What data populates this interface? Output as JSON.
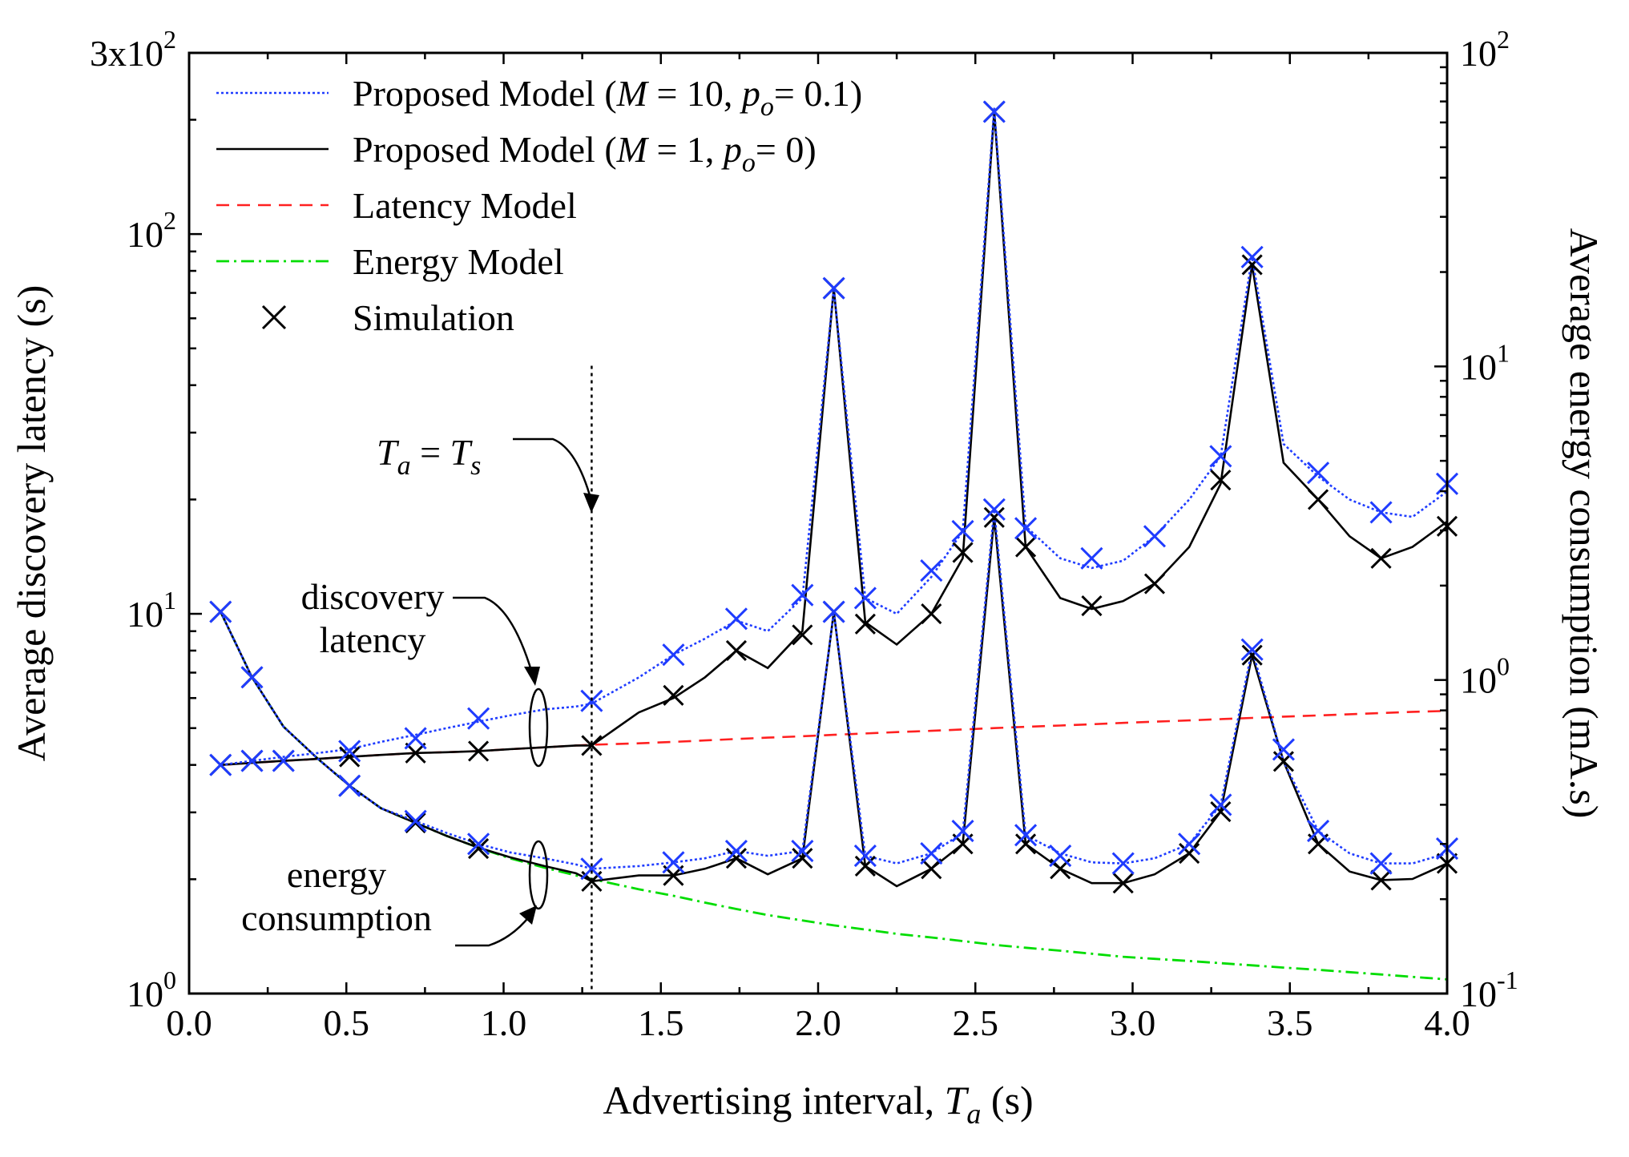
{
  "chart_data": {
    "type": "line",
    "xlabel": "Advertising interval, T_a (s)",
    "xlabel_parts": {
      "main": "Advertising interval, ",
      "var": "T",
      "sub": "a",
      "unit": " (s)"
    },
    "ylabel_left": "Average discovery latency (s)",
    "ylabel_right": "Average energy consumption (mA.s)",
    "xlim": [
      0.0,
      4.0
    ],
    "ylim_left": [
      1,
      300
    ],
    "ylim_right": [
      0.1,
      100
    ],
    "y_scale": "log",
    "x_ticks": [
      "0.0",
      "0.5",
      "1.0",
      "1.5",
      "2.0",
      "2.5",
      "3.0",
      "3.5",
      "4.0"
    ],
    "y_left_ticks": [
      {
        "value": 1,
        "base": "10",
        "exp": "0"
      },
      {
        "value": 10,
        "base": "10",
        "exp": "1"
      },
      {
        "value": 100,
        "base": "10",
        "exp": "2"
      },
      {
        "value": 300,
        "base": "3x10",
        "exp": "2"
      }
    ],
    "y_right_ticks": [
      {
        "value": 0.1,
        "base": "10",
        "exp": "-1"
      },
      {
        "value": 1,
        "base": "10",
        "exp": "0"
      },
      {
        "value": 10,
        "base": "10",
        "exp": "1"
      },
      {
        "value": 100,
        "base": "10",
        "exp": "2"
      }
    ],
    "legend": {
      "position": "top-left",
      "entries": [
        {
          "key": "blue",
          "text": "Proposed Model (M = 10, p_o = 0.1)",
          "parts": [
            "Proposed Model (",
            "M",
            " = 10,  ",
            "p",
            "o",
            "= 0.1)"
          ],
          "style": "dotted",
          "color": "#1f3cff"
        },
        {
          "key": "black",
          "text": "Proposed Model (M = 1, p_o = 0)",
          "parts": [
            "Proposed Model (",
            "M",
            " = 1,  ",
            "p",
            "o",
            "= 0)"
          ],
          "style": "solid",
          "color": "#000000"
        },
        {
          "key": "latency",
          "text": "Latency Model",
          "style": "dashed",
          "color": "#ff2020"
        },
        {
          "key": "energy",
          "text": "Energy Model",
          "style": "dashdot",
          "color": "#00dd00"
        },
        {
          "key": "sim",
          "text": "Simulation",
          "style": "marker",
          "color": "#000000"
        }
      ]
    },
    "annotations": [
      {
        "key": "ta_ts",
        "text": "T_a = T_s",
        "parts": [
          "T",
          "a",
          " = ",
          "T",
          "s"
        ],
        "x": 1.28
      },
      {
        "key": "latency_label",
        "lines": [
          "discovery",
          "latency"
        ]
      },
      {
        "key": "energy_label",
        "lines": [
          "energy",
          "consumption"
        ]
      }
    ],
    "vline": {
      "x": 1.28,
      "y_from": 1.0,
      "y_to": 45
    },
    "x": [
      0.1,
      0.2,
      0.3,
      0.41,
      0.51,
      0.61,
      0.72,
      0.82,
      0.92,
      1.02,
      1.13,
      1.23,
      1.28,
      1.43,
      1.54,
      1.64,
      1.74,
      1.84,
      1.95,
      2.05,
      2.15,
      2.25,
      2.36,
      2.46,
      2.56,
      2.66,
      2.77,
      2.87,
      2.97,
      3.07,
      3.18,
      3.28,
      3.38,
      3.48,
      3.59,
      3.69,
      3.79,
      3.89,
      4.0
    ],
    "series": [
      {
        "name": "Proposed Model (M = 10, p_o = 0.1)",
        "group": "latency",
        "axis": "left",
        "style": "dotted",
        "color": "#1f3cff",
        "values": [
          4.0,
          4.1,
          4.2,
          4.3,
          4.4,
          4.6,
          4.8,
          5.0,
          5.2,
          5.4,
          5.6,
          5.7,
          5.8,
          6.8,
          7.8,
          8.6,
          9.6,
          9.0,
          11.0,
          72,
          11.0,
          10.0,
          12.5,
          16.5,
          215,
          17.0,
          14.0,
          13.2,
          13.8,
          16.0,
          20.0,
          26.0,
          87,
          28.0,
          23.0,
          20.0,
          18.5,
          18.0,
          21.0
        ]
      },
      {
        "name": "Proposed Model (M = 1, p_o = 0)",
        "group": "latency",
        "axis": "left",
        "style": "solid",
        "color": "#000000",
        "values": [
          4.0,
          4.05,
          4.1,
          4.15,
          4.2,
          4.25,
          4.3,
          4.32,
          4.35,
          4.4,
          4.45,
          4.5,
          4.5,
          5.5,
          6.0,
          6.8,
          8.0,
          7.2,
          9.0,
          72,
          9.5,
          8.3,
          10.0,
          14.0,
          210,
          15.0,
          11.0,
          10.3,
          10.8,
          12.0,
          15.0,
          22.0,
          83,
          25.0,
          20.0,
          16.0,
          14.0,
          15.0,
          17.5
        ]
      },
      {
        "name": "Latency Model",
        "group": "latency",
        "axis": "left",
        "style": "dashed",
        "color": "#ff2020",
        "values": [
          4.0,
          4.05,
          4.1,
          4.15,
          4.2,
          4.25,
          4.3,
          4.32,
          4.35,
          4.4,
          4.45,
          4.5,
          4.52,
          4.56,
          4.6,
          4.64,
          4.68,
          4.72,
          4.76,
          4.8,
          4.84,
          4.88,
          4.92,
          4.96,
          5.0,
          5.04,
          5.08,
          5.12,
          5.16,
          5.2,
          5.24,
          5.28,
          5.32,
          5.36,
          5.4,
          5.44,
          5.48,
          5.52,
          5.55
        ]
      },
      {
        "name": "Proposed Model (M = 10, p_o = 0.1) energy",
        "group": "energy",
        "axis": "right",
        "style": "dotted",
        "color": "#1f3cff",
        "values": [
          1.65,
          1.02,
          0.71,
          0.56,
          0.46,
          0.39,
          0.355,
          0.325,
          0.3,
          0.282,
          0.27,
          0.258,
          0.25,
          0.255,
          0.262,
          0.27,
          0.285,
          0.275,
          0.285,
          1.65,
          0.275,
          0.26,
          0.28,
          0.325,
          3.5,
          0.32,
          0.28,
          0.262,
          0.26,
          0.27,
          0.3,
          0.4,
          1.25,
          0.55,
          0.33,
          0.28,
          0.26,
          0.26,
          0.28
        ]
      },
      {
        "name": "Proposed Model (M = 1, p_o = 0) energy",
        "group": "energy",
        "axis": "right",
        "style": "solid",
        "color": "#000000",
        "values": [
          1.65,
          1.02,
          0.71,
          0.56,
          0.46,
          0.39,
          0.35,
          0.318,
          0.292,
          0.272,
          0.255,
          0.242,
          0.228,
          0.238,
          0.238,
          0.25,
          0.27,
          0.24,
          0.27,
          1.65,
          0.255,
          0.22,
          0.25,
          0.3,
          3.3,
          0.3,
          0.25,
          0.225,
          0.225,
          0.24,
          0.28,
          0.38,
          1.2,
          0.55,
          0.3,
          0.245,
          0.23,
          0.232,
          0.26
        ]
      },
      {
        "name": "Energy Model",
        "group": "energy",
        "axis": "right",
        "style": "dashdot",
        "color": "#00dd00",
        "values": [
          1.65,
          1.02,
          0.71,
          0.56,
          0.46,
          0.39,
          0.35,
          0.318,
          0.292,
          0.27,
          0.252,
          0.238,
          0.232,
          0.215,
          0.205,
          0.195,
          0.186,
          0.178,
          0.171,
          0.165,
          0.16,
          0.155,
          0.151,
          0.147,
          0.143,
          0.14,
          0.137,
          0.134,
          0.131,
          0.129,
          0.127,
          0.125,
          0.123,
          0.121,
          0.119,
          0.117,
          0.115,
          0.113,
          0.111
        ]
      }
    ],
    "simulation": [
      {
        "group": "latency",
        "axis": "left",
        "x": [
          0.1,
          0.2,
          0.3,
          0.51,
          0.72,
          0.92,
          1.28,
          1.54,
          1.74,
          1.95,
          2.05,
          2.15,
          2.36,
          2.46,
          2.56,
          2.66,
          2.87,
          3.07,
          3.28,
          3.38,
          3.59,
          3.79,
          4.0
        ],
        "blue": [
          4.0,
          4.1,
          4.1,
          4.35,
          4.7,
          5.3,
          5.9,
          7.8,
          9.7,
          11.2,
          72,
          11.0,
          13.0,
          16.5,
          210,
          16.8,
          14.0,
          16.0,
          26.0,
          87,
          23.5,
          18.5,
          22.0
        ],
        "black": [
          4.0,
          4.1,
          4.1,
          4.2,
          4.3,
          4.35,
          4.5,
          6.1,
          8.0,
          8.8,
          72,
          9.4,
          10.0,
          14.5,
          210,
          15.0,
          10.5,
          12.0,
          22.5,
          83,
          20.0,
          14.0,
          17.0
        ]
      },
      {
        "group": "energy",
        "axis": "right",
        "x": [
          0.1,
          0.2,
          0.51,
          0.72,
          0.92,
          1.28,
          1.54,
          1.74,
          1.95,
          2.05,
          2.15,
          2.36,
          2.46,
          2.56,
          2.66,
          2.77,
          2.97,
          3.18,
          3.28,
          3.38,
          3.48,
          3.59,
          3.79,
          4.0
        ],
        "blue": [
          1.65,
          1.02,
          0.46,
          0.355,
          0.3,
          0.25,
          0.262,
          0.285,
          0.285,
          1.65,
          0.275,
          0.28,
          0.33,
          3.5,
          0.32,
          0.275,
          0.26,
          0.3,
          0.4,
          1.25,
          0.6,
          0.33,
          0.26,
          0.29
        ],
        "black": [
          1.65,
          1.02,
          0.46,
          0.35,
          0.29,
          0.228,
          0.238,
          0.27,
          0.27,
          1.65,
          0.255,
          0.25,
          0.3,
          3.3,
          0.3,
          0.25,
          0.225,
          0.28,
          0.38,
          1.2,
          0.55,
          0.3,
          0.23,
          0.26
        ]
      }
    ]
  }
}
